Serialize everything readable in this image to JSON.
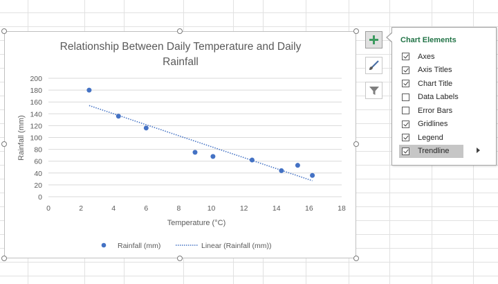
{
  "chart": {
    "title_line1": "Relationship Between Daily Temperature and Daily",
    "title_line2": "Rainfall",
    "xlabel": "Temperature (°C)",
    "ylabel": "Rainfall (mm)",
    "legend": {
      "points_label": "Rainfall (mm)",
      "trend_label": "Linear (Rainfall (mm))"
    },
    "colors": {
      "points": "#4472c4",
      "trendline": "#4472c4",
      "gridline": "#d9d9d9",
      "text": "#595959"
    }
  },
  "chart_data": {
    "type": "scatter",
    "title": "Relationship Between Daily Temperature and Daily Rainfall",
    "xlabel": "Temperature (°C)",
    "ylabel": "Rainfall (mm)",
    "xlim": [
      0,
      18
    ],
    "ylim": [
      0,
      200
    ],
    "x_ticks": [
      0,
      2,
      4,
      6,
      8,
      10,
      12,
      14,
      16,
      18
    ],
    "y_ticks": [
      0,
      20,
      40,
      60,
      80,
      100,
      120,
      140,
      160,
      180,
      200
    ],
    "grid": true,
    "legend_position": "bottom",
    "series": [
      {
        "name": "Rainfall (mm)",
        "x": [
          2.5,
          4.3,
          6.0,
          9.0,
          10.1,
          12.5,
          14.3,
          15.3,
          16.2
        ],
        "y": [
          180,
          136,
          116,
          75,
          68,
          62,
          44,
          53,
          36
        ]
      }
    ],
    "trendline": {
      "name": "Linear (Rainfall (mm))",
      "type": "linear",
      "x_start": 2.5,
      "y_start": 154,
      "x_end": 16.2,
      "y_end": 27
    }
  },
  "side_buttons": {
    "add": "plus-icon",
    "style": "brush-icon",
    "filter": "funnel-icon"
  },
  "chart_elements_panel": {
    "title": "Chart Elements",
    "options": [
      {
        "label": "Axes",
        "checked": true
      },
      {
        "label": "Axis Titles",
        "checked": true
      },
      {
        "label": "Chart Title",
        "checked": true
      },
      {
        "label": "Data Labels",
        "checked": false
      },
      {
        "label": "Error Bars",
        "checked": false
      },
      {
        "label": "Gridlines",
        "checked": true
      },
      {
        "label": "Legend",
        "checked": true
      },
      {
        "label": "Trendline",
        "checked": true
      }
    ],
    "active_option": "Trendline"
  }
}
